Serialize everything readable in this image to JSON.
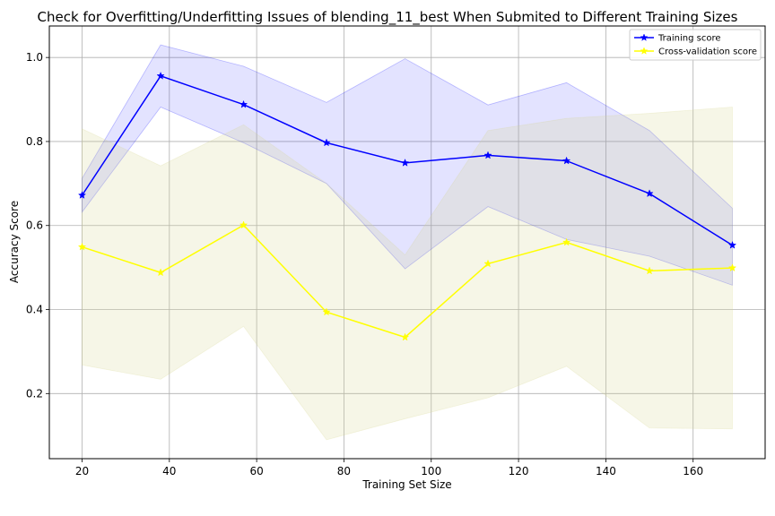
{
  "chart_data": {
    "type": "line",
    "title": "Check for Overfitting/Underfitting Issues of blending_11_best When Submited to Different Training Sizes",
    "xlabel": "Training Set Size",
    "ylabel": "Accuracy Score",
    "xlim": [
      12.5,
      176.5
    ],
    "ylim": [
      0.045,
      1.075
    ],
    "xticks": [
      20,
      40,
      60,
      80,
      100,
      120,
      140,
      160
    ],
    "yticks": [
      0.2,
      0.4,
      0.6,
      0.8,
      1.0
    ],
    "xtick_labels": [
      "20",
      "40",
      "60",
      "80",
      "100",
      "120",
      "140",
      "160"
    ],
    "ytick_labels": [
      "0.2",
      "0.4",
      "0.6",
      "0.8",
      "1.0"
    ],
    "grid": true,
    "legend_position": "top-right",
    "x": [
      20,
      38,
      57,
      76,
      94,
      113,
      131,
      150,
      169
    ],
    "series": [
      {
        "name": "Training score",
        "color": "#0000ff",
        "marker": "star",
        "values": [
          0.672,
          0.956,
          0.888,
          0.797,
          0.749,
          0.767,
          0.754,
          0.676,
          0.553
        ],
        "band_lower": [
          0.632,
          0.882,
          0.797,
          0.7,
          0.497,
          0.645,
          0.567,
          0.527,
          0.458
        ],
        "band_upper": [
          0.712,
          1.03,
          0.979,
          0.893,
          0.997,
          0.887,
          0.94,
          0.826,
          0.641
        ],
        "band_color": "#0000ff"
      },
      {
        "name": "Cross-validation score",
        "color": "#ffff00",
        "marker": "star",
        "values": [
          0.549,
          0.488,
          0.601,
          0.394,
          0.334,
          0.509,
          0.56,
          0.492,
          0.499
        ],
        "band_lower": [
          0.268,
          0.234,
          0.36,
          0.09,
          0.14,
          0.19,
          0.265,
          0.118,
          0.116
        ],
        "band_upper": [
          0.83,
          0.742,
          0.84,
          0.7,
          0.53,
          0.826,
          0.855,
          0.867,
          0.882
        ],
        "band_color": "#d8d890"
      }
    ]
  }
}
